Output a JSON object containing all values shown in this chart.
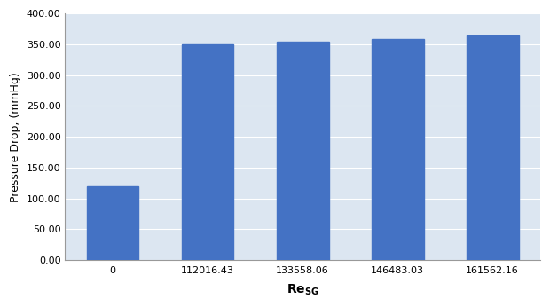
{
  "categories": [
    "0",
    "112016.43",
    "133558.06",
    "146483.03",
    "161562.16"
  ],
  "values": [
    120.0,
    350.0,
    354.0,
    359.0,
    364.0
  ],
  "bar_color": "#4472C4",
  "ylabel": "Pressure Drop, (mmHg)",
  "ylim": [
    0,
    400
  ],
  "yticks": [
    0,
    50,
    100,
    150,
    200,
    250,
    300,
    350,
    400
  ],
  "figure_facecolor": "#ffffff",
  "axes_facecolor": "#dce6f1",
  "grid_color": "#ffffff",
  "bar_width": 0.55,
  "ylabel_fontsize": 9,
  "tick_fontsize": 8,
  "xlabel_fontsize": 10
}
